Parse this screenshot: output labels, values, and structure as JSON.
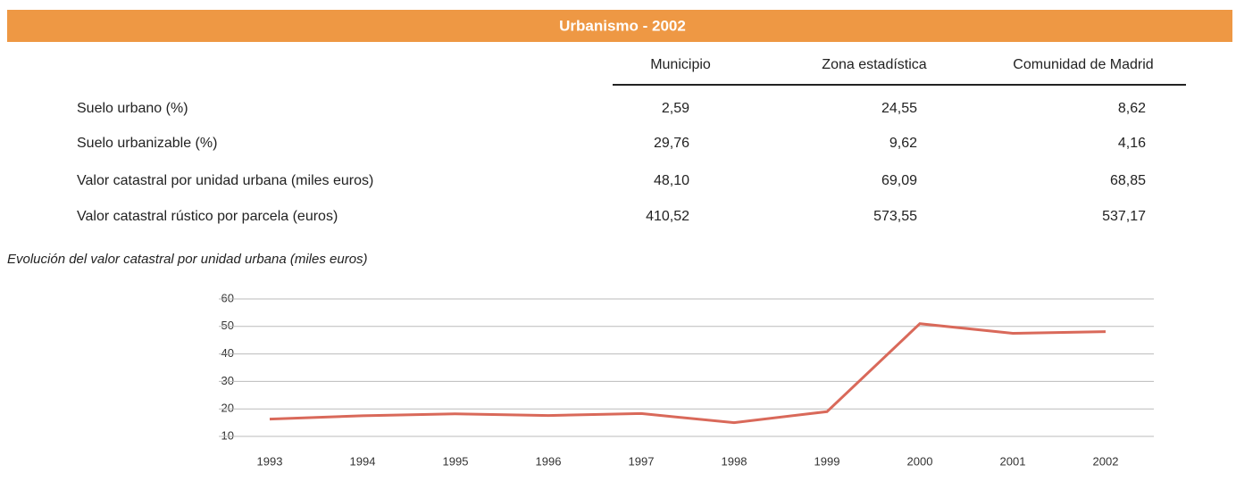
{
  "header": {
    "title": "Urbanismo - 2002"
  },
  "table": {
    "columns": [
      "Municipio",
      "Zona estadística",
      "Comunidad de Madrid"
    ],
    "rows": [
      {
        "label": "Suelo urbano (%)",
        "values": [
          "2,59",
          "24,55",
          "8,62"
        ]
      },
      {
        "label": "Suelo urbanizable (%)",
        "values": [
          "29,76",
          "9,62",
          "4,16"
        ]
      },
      {
        "label": "Valor catastral por unidad urbana (miles euros)",
        "values": [
          "48,10",
          "69,09",
          "68,85"
        ]
      },
      {
        "label": "Valor catastral rústico por parcela (euros)",
        "values": [
          "410,52",
          "573,55",
          "537,17"
        ]
      }
    ]
  },
  "chart_data": {
    "type": "line",
    "title": "Evolución del valor catastral por unidad urbana (miles euros)",
    "categories": [
      "1993",
      "1994",
      "1995",
      "1996",
      "1997",
      "1998",
      "1999",
      "2000",
      "2001",
      "2002"
    ],
    "series": [
      {
        "name": null,
        "color": "#d9695a",
        "values": [
          16.3,
          17.5,
          18.2,
          17.6,
          18.3,
          15,
          19,
          51,
          47.5,
          48.1
        ]
      }
    ],
    "ylim": [
      10,
      60
    ],
    "yticks": [
      10,
      20,
      30,
      40,
      50,
      60
    ],
    "grid": true
  }
}
